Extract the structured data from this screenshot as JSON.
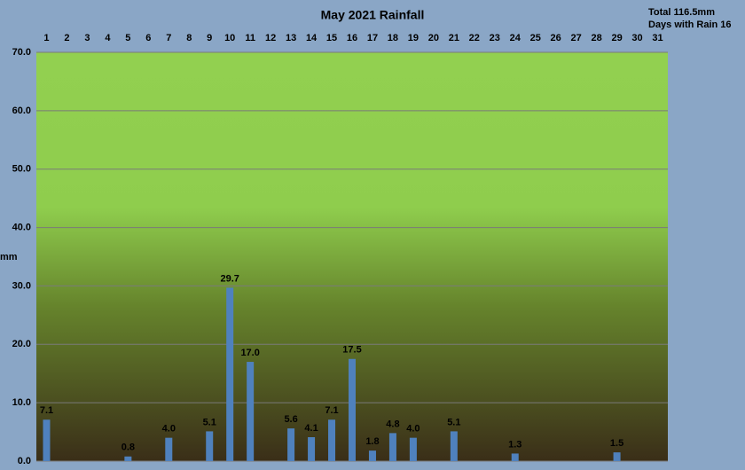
{
  "chart_data": {
    "type": "bar",
    "title": "May 2021 Rainfall",
    "annotations": [
      "Total 116.5mm",
      "Days with Rain 16"
    ],
    "y_label": "mm",
    "categories": [
      "1",
      "2",
      "3",
      "4",
      "5",
      "6",
      "7",
      "8",
      "9",
      "10",
      "11",
      "12",
      "13",
      "14",
      "15",
      "16",
      "17",
      "18",
      "19",
      "20",
      "21",
      "22",
      "23",
      "24",
      "25",
      "26",
      "27",
      "28",
      "29",
      "30",
      "31"
    ],
    "values": [
      7.1,
      0,
      0,
      0,
      0.8,
      0,
      4.0,
      0,
      5.1,
      29.7,
      17.0,
      0,
      5.6,
      4.1,
      7.1,
      17.5,
      1.8,
      4.8,
      4.0,
      0,
      5.1,
      0,
      0,
      1.3,
      0,
      0,
      0,
      0,
      1.5,
      0,
      0
    ],
    "value_labels": [
      "7.1",
      null,
      null,
      null,
      "0.8",
      null,
      "4.0",
      null,
      "5.1",
      "29.7",
      "17.0",
      null,
      "5.6",
      "4.1",
      "7.1",
      "17.5",
      "1.8",
      "4.8",
      "4.0",
      null,
      "5.1",
      null,
      null,
      "1.3",
      null,
      null,
      null,
      null,
      "1.5",
      null,
      null
    ],
    "color": "#4f81bd",
    "ylim": [
      0,
      70
    ],
    "yticks": [
      {
        "value": 0,
        "label": "0.0"
      },
      {
        "value": 10,
        "label": "10.0"
      },
      {
        "value": 20,
        "label": "20.0"
      },
      {
        "value": 30,
        "label": "30.0"
      },
      {
        "value": 40,
        "label": "40.0"
      },
      {
        "value": 50,
        "label": "50.0"
      },
      {
        "value": 60,
        "label": "60.0"
      },
      {
        "value": 70,
        "label": "70.0"
      }
    ],
    "grid": true
  }
}
